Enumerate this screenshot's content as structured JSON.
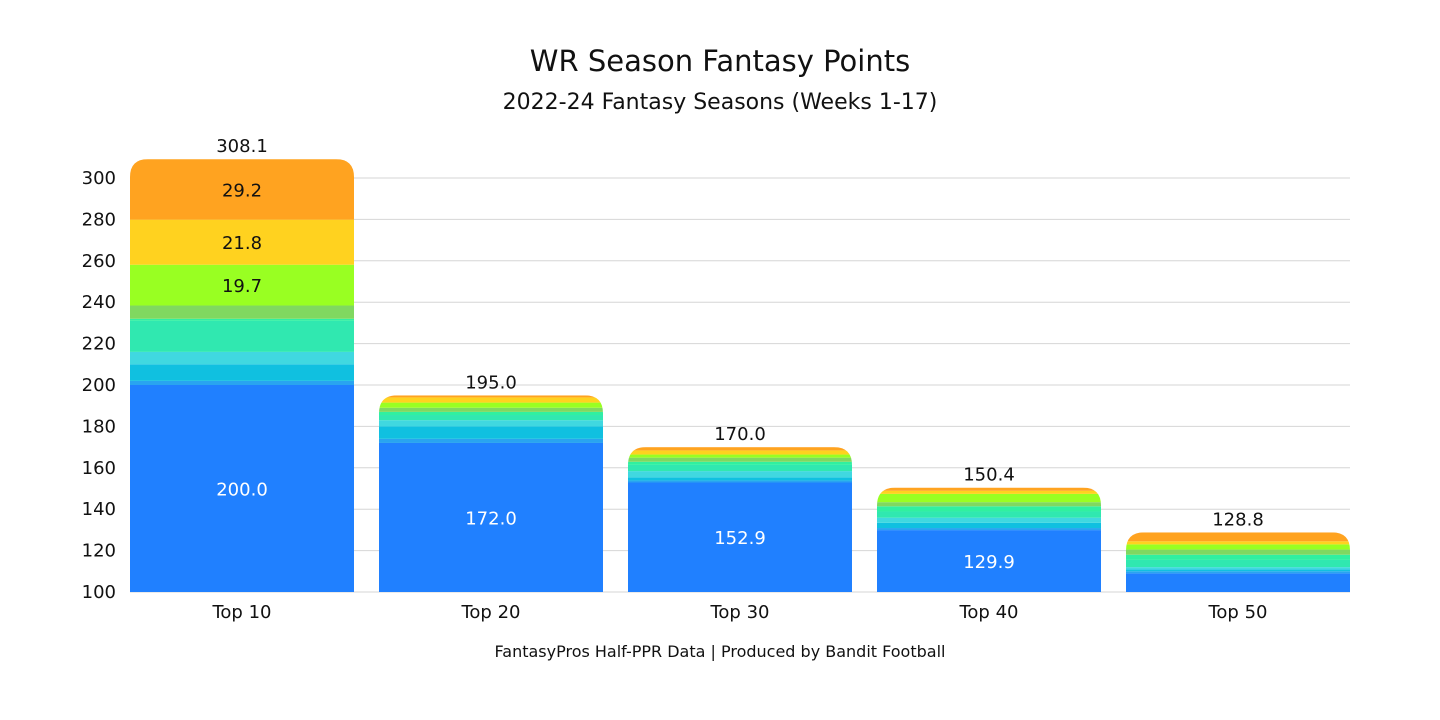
{
  "chart_data": {
    "type": "bar",
    "title": "WR Season Fantasy Points",
    "subtitle": "2022-24 Fantasy Seasons (Weeks 1-17)",
    "footer": "FantasyPros Half-PPR Data | Produced by Bandit Football",
    "xlabel": "",
    "ylabel": "",
    "ylim": [
      100,
      308.1
    ],
    "yticks": [
      100,
      120,
      140,
      160,
      180,
      200,
      220,
      240,
      260,
      280,
      300
    ],
    "grid": true,
    "stacked": true,
    "categories": [
      "Top 10",
      "Top 20",
      "Top 30",
      "Top 40",
      "Top 50"
    ],
    "totals": [
      308.1,
      195.0,
      170.0,
      150.4,
      128.8
    ],
    "segment_colors": [
      "#2080ff",
      "#29a4f0",
      "#10c0e0",
      "#40d8e0",
      "#30e8b0",
      "#30f0a0",
      "#80d860",
      "#99ff22",
      "#ffd21f",
      "#ffa320"
    ],
    "segments": [
      [
        200.0,
        2.0,
        8.0,
        6.0,
        15.0,
        1.0,
        6.4,
        19.7,
        21.8,
        29.2
      ],
      [
        172.0,
        2.0,
        6.0,
        3.0,
        2.5,
        1.5,
        2.0,
        2.5,
        2.5,
        1.0
      ],
      [
        152.9,
        1.0,
        1.5,
        3.0,
        3.0,
        1.5,
        2.0,
        1.5,
        2.0,
        1.6
      ],
      [
        129.9,
        1.0,
        2.5,
        2.5,
        3.0,
        2.5,
        2.0,
        4.0,
        1.5,
        1.5
      ],
      [
        109.0,
        1.0,
        1.0,
        1.0,
        3.5,
        2.5,
        2.5,
        2.5,
        1.5,
        4.3
      ]
    ],
    "segment_labels": [
      [
        {
          "segment": 0,
          "text": "200.0",
          "color": "#ffffff"
        },
        {
          "segment": 7,
          "text": "19.7",
          "color": "#111111"
        },
        {
          "segment": 8,
          "text": "21.8",
          "color": "#111111"
        },
        {
          "segment": 9,
          "text": "29.2",
          "color": "#111111"
        }
      ],
      [
        {
          "segment": 0,
          "text": "172.0",
          "color": "#ffffff"
        }
      ],
      [
        {
          "segment": 0,
          "text": "152.9",
          "color": "#ffffff"
        }
      ],
      [
        {
          "segment": 0,
          "text": "129.9",
          "color": "#ffffff"
        }
      ],
      []
    ],
    "total_labels": [
      "308.1",
      "195.0",
      "170.0",
      "150.4",
      "128.8"
    ]
  }
}
